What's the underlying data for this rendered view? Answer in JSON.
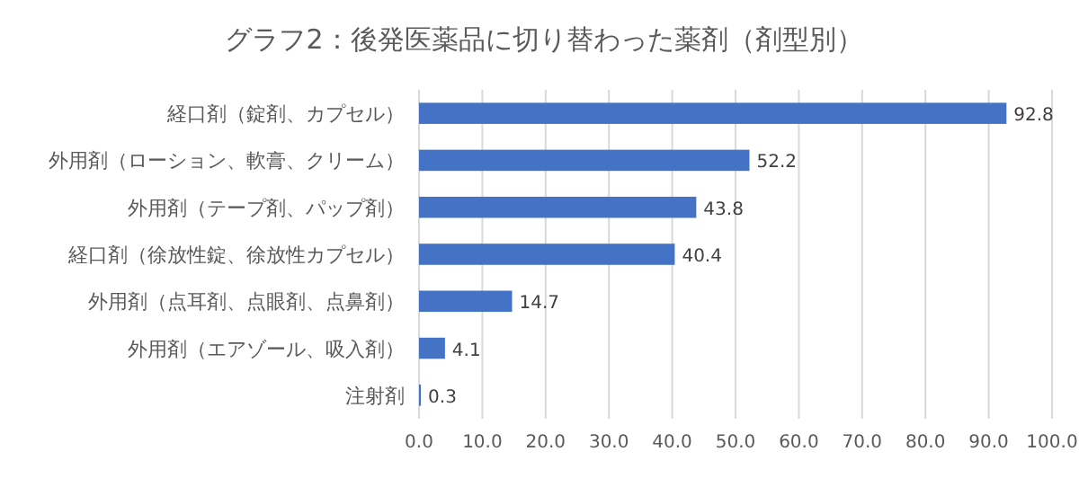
{
  "chart_data": {
    "type": "bar",
    "orientation": "horizontal",
    "title": "グラフ2：後発医薬品に切り替わった薬剤（剤型別）",
    "categories": [
      "経口剤（錠剤、カプセル）",
      "外用剤（ローション、軟膏、クリーム）",
      "外用剤（テープ剤、パップ剤）",
      "経口剤（徐放性錠、徐放性カプセル）",
      "外用剤（点耳剤、点眼剤、点鼻剤）",
      "外用剤（エアゾール、吸入剤）",
      "注射剤"
    ],
    "values": [
      92.8,
      52.2,
      43.8,
      40.4,
      14.7,
      4.1,
      0.3
    ],
    "color": "#4472c4",
    "xlim": [
      0,
      100
    ],
    "xticks": [
      {
        "value": 0,
        "label": "0.0"
      },
      {
        "value": 10,
        "label": "10.0"
      },
      {
        "value": 20,
        "label": "20.0"
      },
      {
        "value": 30,
        "label": "30.0"
      },
      {
        "value": 40,
        "label": "40.0"
      },
      {
        "value": 50,
        "label": "50.0"
      },
      {
        "value": 60,
        "label": "60.0"
      },
      {
        "value": 70,
        "label": "70.0"
      },
      {
        "value": 80,
        "label": "80.0"
      },
      {
        "value": 90,
        "label": "90.0"
      },
      {
        "value": 100,
        "label": "100.0"
      }
    ],
    "grid": "x",
    "data_labels": true
  }
}
